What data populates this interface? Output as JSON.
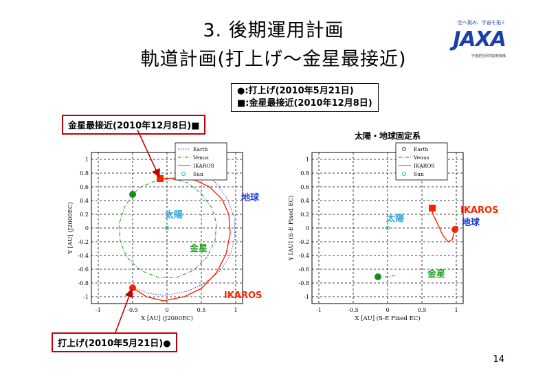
{
  "slide": {
    "title_line1": "3. 後期運用計画",
    "title_line2": "軌道計画(打上げ～金星最接近)",
    "page_number": "14"
  },
  "brand": {
    "tagline": "空へ挑み、宇宙を拓く",
    "logo": "JAXA",
    "subtitle": "宇宙航空研究開発機構"
  },
  "legend_box": {
    "circle_item": "●:打上げ(2010年5月21日)",
    "square_item": "■:金星最接近(2010年12月8日)"
  },
  "callouts": {
    "venus_approach": "金星最接近(2010年12月8日)■",
    "launch": "打上げ(2010年5月21日)●"
  },
  "colors": {
    "earth": "#2b2bd9",
    "venus": "#1a8a1a",
    "ikaros": "#ff2200",
    "sun": "#22aacc",
    "callout_border": "#c00000",
    "label_blue": "#1a3fd9",
    "label_green": "#1aa01a",
    "label_red": "#ff2200",
    "label_cyan": "#29a8e0"
  },
  "chart_data": [
    {
      "type": "line",
      "title": "",
      "xlabel": "X [AU] (J2000EC)",
      "ylabel": "Y [AU] (J2000EC)",
      "xlim": [
        -1.1,
        1.1
      ],
      "ylim": [
        -1.1,
        1.1
      ],
      "xticks": [
        "-1",
        "-0.5",
        "0",
        "0.5",
        "1"
      ],
      "yticks": [
        "1",
        "0.8",
        "0.6",
        "0.4",
        "0.2",
        "0",
        "-0.2",
        "-0.4",
        "-0.6",
        "-0.8",
        "-1"
      ],
      "grid": true,
      "legend": [
        "Earth",
        "Venus",
        "IKAROS",
        "Sun"
      ],
      "legend_position": "top-right",
      "series": [
        {
          "name": "Earth",
          "style": "dotted",
          "color_key": "earth",
          "points": [
            [
              0.26,
              0.95
            ],
            [
              0.5,
              0.84
            ],
            [
              0.72,
              0.65
            ],
            [
              0.88,
              0.42
            ],
            [
              0.98,
              0.15
            ],
            [
              0.99,
              -0.12
            ],
            [
              0.92,
              -0.4
            ],
            [
              0.78,
              -0.62
            ],
            [
              0.55,
              -0.8
            ],
            [
              0.3,
              -0.92
            ],
            [
              -0.02,
              -0.98
            ],
            [
              -0.28,
              -0.95
            ],
            [
              -0.53,
              -0.85
            ]
          ]
        },
        {
          "name": "Venus",
          "style": "dashdot",
          "color_key": "venus",
          "points": [
            [
              -0.5,
              0.49
            ],
            [
              -0.62,
              0.3
            ],
            [
              -0.7,
              0.05
            ],
            [
              -0.68,
              -0.2
            ],
            [
              -0.58,
              -0.43
            ],
            [
              -0.38,
              -0.62
            ],
            [
              -0.12,
              -0.72
            ],
            [
              0.14,
              -0.72
            ],
            [
              0.38,
              -0.62
            ],
            [
              0.58,
              -0.43
            ],
            [
              0.7,
              -0.18
            ],
            [
              0.72,
              0.07
            ],
            [
              0.65,
              0.3
            ],
            [
              0.5,
              0.5
            ],
            [
              0.3,
              0.66
            ],
            [
              0.06,
              0.72
            ],
            [
              -0.18,
              0.68
            ],
            [
              -0.38,
              0.6
            ],
            [
              -0.5,
              0.49
            ]
          ]
        },
        {
          "name": "IKAROS",
          "style": "solid",
          "color_key": "ikaros",
          "points": [
            [
              -0.5,
              -0.87
            ],
            [
              -0.3,
              -1.0
            ],
            [
              -0.05,
              -1.06
            ],
            [
              0.25,
              -1.0
            ],
            [
              0.5,
              -0.88
            ],
            [
              0.72,
              -0.65
            ],
            [
              0.86,
              -0.38
            ],
            [
              0.92,
              -0.08
            ],
            [
              0.9,
              0.2
            ],
            [
              0.8,
              0.42
            ],
            [
              0.62,
              0.6
            ],
            [
              0.4,
              0.7
            ],
            [
              0.2,
              0.73
            ],
            [
              -0.1,
              0.72
            ]
          ]
        },
        {
          "name": "Sun",
          "style": "marker",
          "color_key": "sun",
          "points": [
            [
              0,
              0
            ]
          ]
        }
      ],
      "markers": [
        {
          "label": "launch",
          "shape": "circle",
          "color_key": "ikaros",
          "x": -0.5,
          "y": -0.87
        },
        {
          "label": "venus approach",
          "shape": "square",
          "color_key": "ikaros",
          "x": -0.1,
          "y": 0.72
        },
        {
          "label": "venus at launch",
          "shape": "circle",
          "color_key": "venus",
          "x": -0.5,
          "y": 0.49
        },
        {
          "label": "earth at venus approach",
          "shape": "square",
          "color_key": "earth",
          "x": 0.26,
          "y": 0.95
        }
      ],
      "annotations": [
        {
          "text": "地球",
          "color_key": "label_blue",
          "x": 1.08,
          "y": 0.4
        },
        {
          "text": "太陽",
          "color_key": "label_cyan",
          "x": -0.03,
          "y": 0.15
        },
        {
          "text": "金星",
          "color_key": "label_green",
          "x": 0.33,
          "y": -0.34
        },
        {
          "text": "IKAROS",
          "color_key": "label_red",
          "x": 0.83,
          "y": -1.02
        }
      ]
    },
    {
      "type": "line",
      "title": "太陽・地球固定系",
      "xlabel": "X [AU] (S-E Fixed EC)",
      "ylabel": "Y [AU] (S-E Fixed EC)",
      "xlim": [
        -1.1,
        1.1
      ],
      "ylim": [
        -1.1,
        1.1
      ],
      "xticks": [
        "-1",
        "-0.5",
        "0",
        "0.5",
        "1"
      ],
      "yticks": [
        "1",
        "0.8",
        "0.6",
        "0.4",
        "0.2",
        "0",
        "-0.2",
        "-0.4",
        "-0.6",
        "-0.8",
        "-1"
      ],
      "grid": true,
      "legend": [
        "Earth",
        "Venus",
        "IKAROS",
        "Sun"
      ],
      "legend_position": "top-right",
      "series": [
        {
          "name": "Earth",
          "style": "marker",
          "color_key": "earth",
          "points": [
            [
              1,
              0
            ]
          ]
        },
        {
          "name": "Venus",
          "style": "dashdot",
          "color_key": "venus",
          "points": [
            [
              -0.14,
              -0.71
            ],
            [
              0.0,
              -0.71
            ],
            [
              0.12,
              -0.69
            ]
          ]
        },
        {
          "name": "IKAROS",
          "style": "solid",
          "color_key": "ikaros",
          "points": [
            [
              0.98,
              -0.02
            ],
            [
              0.94,
              -0.17
            ],
            [
              0.88,
              -0.2
            ],
            [
              0.8,
              -0.1
            ],
            [
              0.72,
              0.08
            ],
            [
              0.66,
              0.2
            ],
            [
              0.65,
              0.29
            ]
          ]
        },
        {
          "name": "Sun",
          "style": "marker",
          "color_key": "sun",
          "points": [
            [
              0,
              0
            ]
          ]
        }
      ],
      "markers": [
        {
          "label": "launch",
          "shape": "circle",
          "color_key": "ikaros",
          "x": 0.98,
          "y": -0.02
        },
        {
          "label": "venus approach",
          "shape": "square",
          "color_key": "ikaros",
          "x": 0.65,
          "y": 0.29
        },
        {
          "label": "venus at launch",
          "shape": "circle",
          "color_key": "venus",
          "x": -0.14,
          "y": -0.71
        }
      ],
      "annotations": [
        {
          "text": "IKAROS",
          "color_key": "label_red",
          "x": 1.06,
          "y": 0.22
        },
        {
          "text": "地球",
          "color_key": "label_blue",
          "x": 1.08,
          "y": 0.04
        },
        {
          "text": "太陽",
          "color_key": "label_cyan",
          "x": -0.02,
          "y": 0.1
        },
        {
          "text": "金星",
          "color_key": "label_green",
          "x": 0.58,
          "y": -0.71
        }
      ]
    }
  ]
}
